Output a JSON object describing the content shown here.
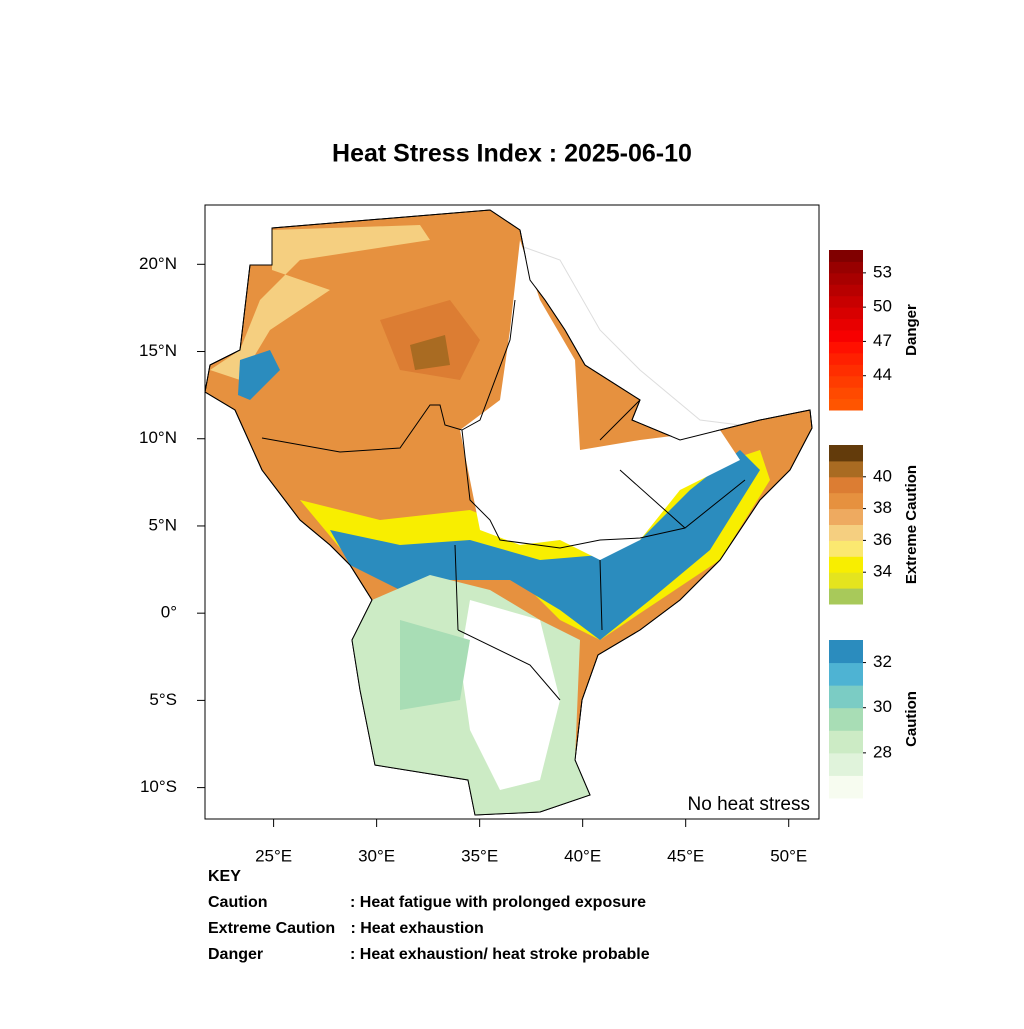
{
  "title": "Heat Stress Index : 2025-06-10",
  "map": {
    "xlim": [
      21.67,
      51.47
    ],
    "ylim": [
      -11.8,
      23.4
    ],
    "xticks": [
      {
        "value": 25,
        "label": "25°E"
      },
      {
        "value": 30,
        "label": "30°E"
      },
      {
        "value": 35,
        "label": "35°E"
      },
      {
        "value": 40,
        "label": "40°E"
      },
      {
        "value": 45,
        "label": "45°E"
      },
      {
        "value": 50,
        "label": "50°E"
      }
    ],
    "yticks": [
      {
        "value": 20,
        "label": "20°N"
      },
      {
        "value": 15,
        "label": "15°N"
      },
      {
        "value": 10,
        "label": "10°N"
      },
      {
        "value": 5,
        "label": "5°N"
      },
      {
        "value": 0,
        "label": "0°"
      },
      {
        "value": -5,
        "label": "5°S"
      },
      {
        "value": -10,
        "label": "10°S"
      }
    ],
    "note": "No heat stress"
  },
  "legend": [
    {
      "title": "Danger",
      "range": [
        41,
        55
      ],
      "ticks": [
        44,
        47,
        50,
        53
      ],
      "colors": [
        "#ff5500",
        "#ff4a00",
        "#ff3c00",
        "#ff2e00",
        "#ff2000",
        "#ff1000",
        "#f70000",
        "#e80000",
        "#d80000",
        "#c80000",
        "#b80000",
        "#a80000",
        "#980000",
        "#800000"
      ]
    },
    {
      "title": "Extreme Caution",
      "range": [
        32,
        42
      ],
      "ticks": [
        34,
        36,
        38,
        40
      ],
      "colors": [
        "#a8c95a",
        "#e4e41e",
        "#f8ee00",
        "#fbe870",
        "#f5cf80",
        "#eeaa60",
        "#e6913f",
        "#dc7d33",
        "#a96b22",
        "#633b0b"
      ]
    },
    {
      "title": "Caution",
      "range": [
        26,
        33
      ],
      "ticks": [
        28,
        30,
        32
      ],
      "colors": [
        "#f7fcf0",
        "#e0f3db",
        "#ccebc5",
        "#a8ddb5",
        "#7bccc4",
        "#4eb3d3",
        "#2b8cbe"
      ]
    }
  ],
  "key": {
    "heading": "KEY",
    "items": [
      {
        "term": "Caution",
        "text": ": Heat fatigue with prolonged exposure"
      },
      {
        "term": "Extreme Caution",
        "text": " : Heat exhaustion"
      },
      {
        "term": "Danger",
        "text": ": Heat exhaustion/ heat stroke probable"
      }
    ]
  }
}
